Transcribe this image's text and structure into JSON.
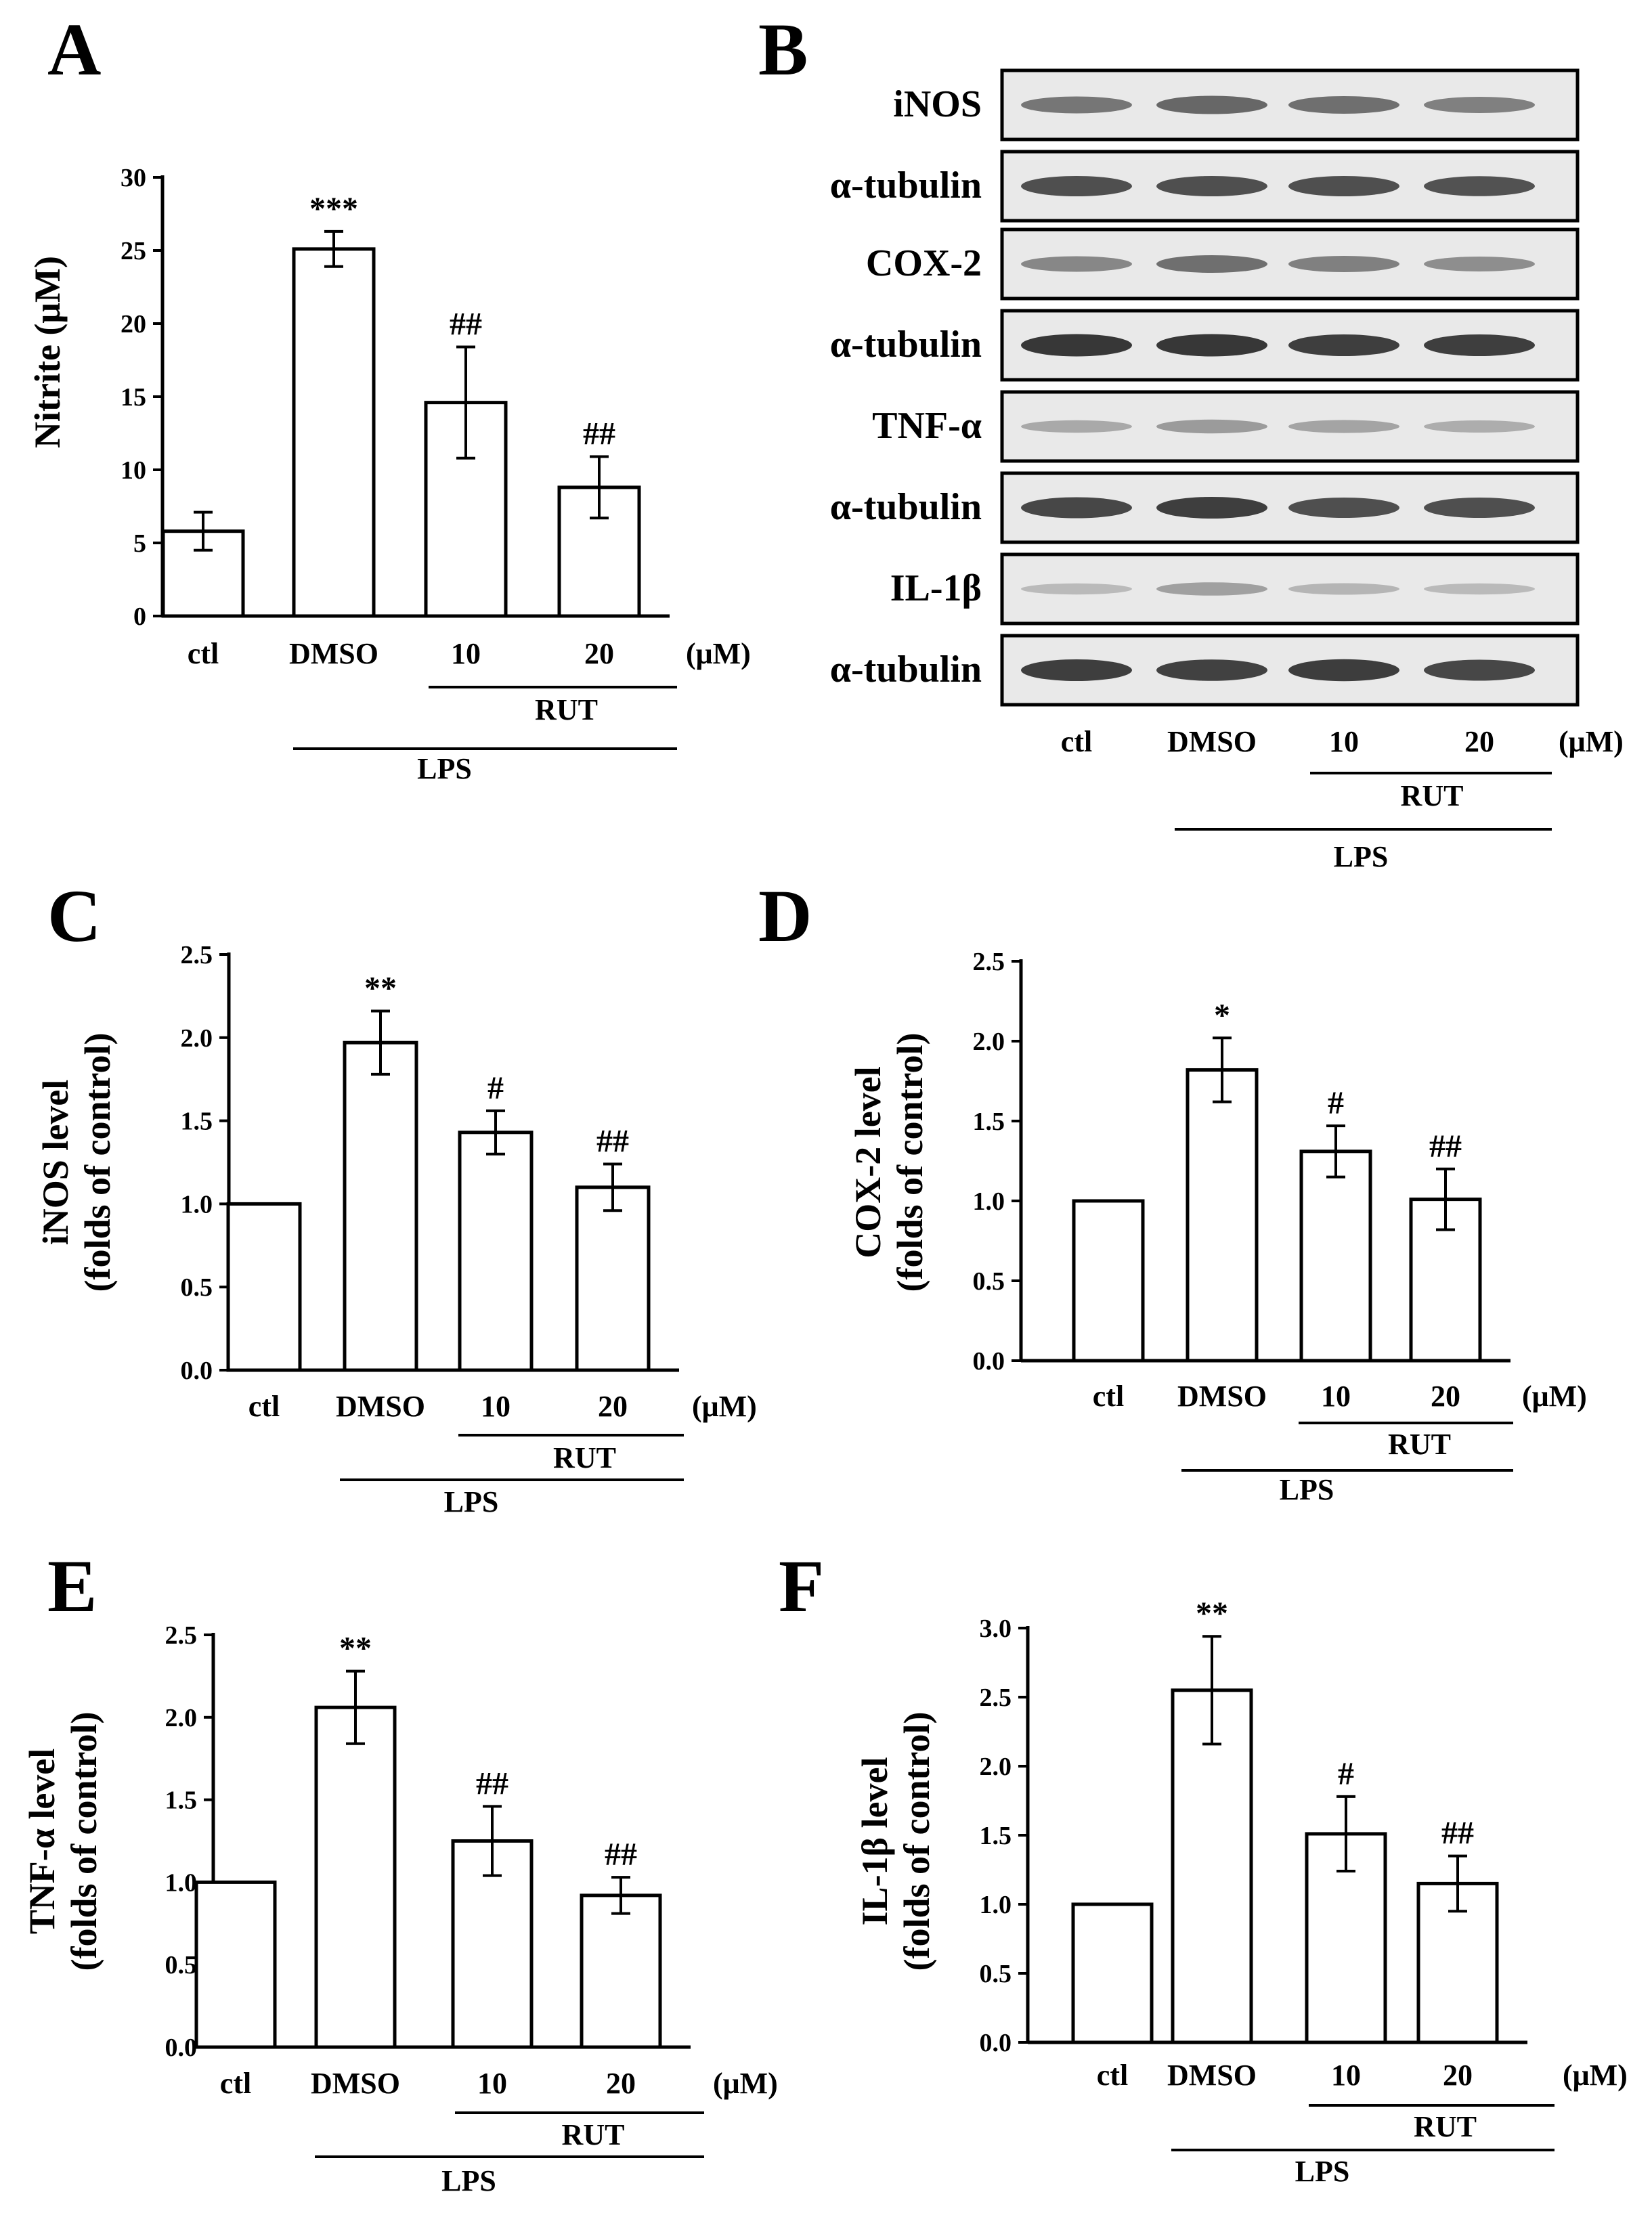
{
  "chart_data": [
    {
      "panel": "A",
      "type": "bar",
      "categories": [
        "ctl",
        "DMSO",
        "10",
        "20"
      ],
      "unit": "(μM)",
      "group_labels": {
        "rut": "RUT",
        "lps": "LPS"
      },
      "values": [
        5.8,
        25.1,
        14.6,
        8.8
      ],
      "errors": [
        1.3,
        1.2,
        3.8,
        2.1
      ],
      "significance": [
        "",
        "***",
        "##",
        "##"
      ],
      "ylabel_lines": [
        "Nitrite (μM)"
      ],
      "ylim": [
        0,
        30
      ],
      "yticks": [
        0,
        5,
        10,
        15,
        20,
        25,
        30
      ],
      "tick_labels": [
        "0",
        "5",
        "10",
        "15",
        "20",
        "25",
        "30"
      ]
    },
    {
      "panel": "C",
      "type": "bar",
      "categories": [
        "ctl",
        "DMSO",
        "10",
        "20"
      ],
      "unit": "(μM)",
      "group_labels": {
        "rut": "RUT",
        "lps": "LPS"
      },
      "values": [
        1.0,
        1.97,
        1.43,
        1.1
      ],
      "errors": [
        0.0,
        0.19,
        0.13,
        0.14
      ],
      "significance": [
        "",
        "**",
        "#",
        "##"
      ],
      "ylabel_lines": [
        "iNOS level",
        "(folds of control)"
      ],
      "ylim": [
        0,
        2.5
      ],
      "yticks": [
        0,
        0.5,
        1.0,
        1.5,
        2.0,
        2.5
      ],
      "tick_labels": [
        "0.0",
        "0.5",
        "1.0",
        "1.5",
        "2.0",
        "2.5"
      ]
    },
    {
      "panel": "D",
      "type": "bar",
      "categories": [
        "ctl",
        "DMSO",
        "10",
        "20"
      ],
      "unit": "(μM)",
      "group_labels": {
        "rut": "RUT",
        "lps": "LPS"
      },
      "values": [
        1.0,
        1.82,
        1.31,
        1.01
      ],
      "errors": [
        0.0,
        0.2,
        0.16,
        0.19
      ],
      "significance": [
        "",
        "*",
        "#",
        "##"
      ],
      "ylabel_lines": [
        "COX-2 level",
        "(folds of control)"
      ],
      "ylim": [
        0,
        2.5
      ],
      "yticks": [
        0,
        0.5,
        1.0,
        1.5,
        2.0,
        2.5
      ],
      "tick_labels": [
        "0.0",
        "0.5",
        "1.0",
        "1.5",
        "2.0",
        "2.5"
      ]
    },
    {
      "panel": "E",
      "type": "bar",
      "categories": [
        "ctl",
        "DMSO",
        "10",
        "20"
      ],
      "unit": "(μM)",
      "group_labels": {
        "rut": "RUT",
        "lps": "LPS"
      },
      "values": [
        1.0,
        2.06,
        1.25,
        0.92
      ],
      "errors": [
        0.0,
        0.22,
        0.21,
        0.11
      ],
      "significance": [
        "",
        "**",
        "##",
        "##"
      ],
      "ylabel_lines": [
        "TNF-α level",
        "(folds of control)"
      ],
      "ylim": [
        0,
        2.5
      ],
      "yticks": [
        0,
        0.5,
        1.0,
        1.5,
        2.0,
        2.5
      ],
      "tick_labels": [
        "0.0",
        "0.5",
        "1.0",
        "1.5",
        "2.0",
        "2.5"
      ]
    },
    {
      "panel": "F",
      "type": "bar",
      "categories": [
        "ctl",
        "DMSO",
        "10",
        "20"
      ],
      "unit": "(μM)",
      "group_labels": {
        "rut": "RUT",
        "lps": "LPS"
      },
      "values": [
        1.0,
        2.55,
        1.51,
        1.15
      ],
      "errors": [
        0.0,
        0.39,
        0.27,
        0.2
      ],
      "significance": [
        "",
        "**",
        "#",
        "##"
      ],
      "ylabel_lines": [
        "IL-1β level",
        "(folds of control)"
      ],
      "ylim": [
        0,
        3.0
      ],
      "yticks": [
        0,
        0.5,
        1.0,
        1.5,
        2.0,
        2.5,
        3.0
      ],
      "tick_labels": [
        "0.0",
        "0.5",
        "1.0",
        "1.5",
        "2.0",
        "2.5",
        "3.0"
      ]
    }
  ],
  "western_blot": {
    "panel": "B",
    "rows": [
      "iNOS",
      "α-tubulin",
      "COX-2",
      "α-tubulin",
      "TNF-α",
      "α-tubulin",
      "IL-1β",
      "α-tubulin"
    ],
    "band_intensity": [
      [
        0.55,
        0.65,
        0.6,
        0.5
      ],
      [
        0.8,
        0.8,
        0.8,
        0.78
      ],
      [
        0.45,
        0.6,
        0.5,
        0.4
      ],
      [
        0.95,
        0.95,
        0.9,
        0.9
      ],
      [
        0.22,
        0.32,
        0.26,
        0.2
      ],
      [
        0.85,
        0.9,
        0.8,
        0.8
      ],
      [
        0.12,
        0.28,
        0.15,
        0.12
      ],
      [
        0.9,
        0.88,
        0.92,
        0.85
      ]
    ],
    "categories": [
      "ctl",
      "DMSO",
      "10",
      "20"
    ],
    "unit": "(μM)",
    "group_labels": {
      "rut": "RUT",
      "lps": "LPS"
    }
  }
}
